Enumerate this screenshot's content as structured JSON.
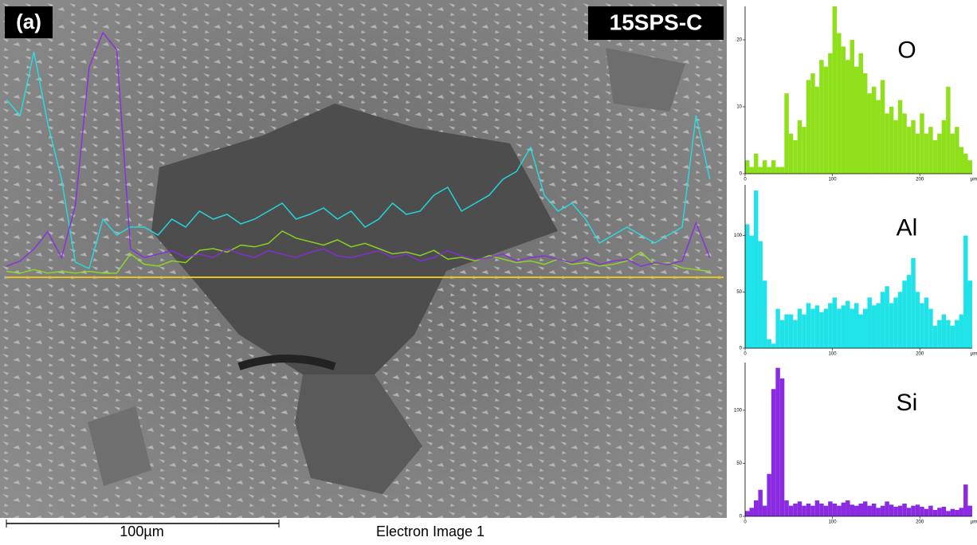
{
  "panel_label": "(a)",
  "sample_label": "15SPS-C",
  "scale_bar_label": "100µm",
  "image_caption": "Electron Image 1",
  "chart_data": [
    {
      "type": "bar",
      "title": "O",
      "color": "#8fe01a",
      "x_label": "µm",
      "x": [
        0,
        5,
        10,
        15,
        20,
        25,
        30,
        35,
        40,
        45,
        50,
        55,
        60,
        65,
        70,
        75,
        80,
        85,
        90,
        95,
        100,
        105,
        110,
        115,
        120,
        125,
        130,
        135,
        140,
        145,
        150,
        155,
        160,
        165,
        170,
        175,
        180,
        185,
        190,
        195,
        200,
        205,
        210,
        215,
        220,
        225,
        230,
        235,
        240,
        245,
        250,
        255
      ],
      "values": [
        2,
        1,
        3,
        1,
        2,
        1,
        2,
        1,
        1,
        12,
        6,
        5,
        8,
        7,
        14,
        15,
        13,
        17,
        16,
        18,
        25,
        21,
        19,
        17,
        20,
        16,
        18,
        15,
        12,
        13,
        11,
        14,
        9,
        10,
        8,
        11,
        9,
        7,
        8,
        6,
        9,
        6,
        7,
        5,
        6,
        8,
        13,
        6,
        7,
        4,
        3,
        2
      ],
      "xlim": [
        0,
        260
      ],
      "xticks": [
        0,
        100,
        200
      ],
      "ylim": [
        0,
        25
      ],
      "yticks": [
        0,
        10,
        20
      ]
    },
    {
      "type": "bar",
      "title": "Al",
      "color": "#1fe3e8",
      "x_label": "µm",
      "x": [
        0,
        5,
        10,
        15,
        20,
        25,
        30,
        35,
        40,
        45,
        50,
        55,
        60,
        65,
        70,
        75,
        80,
        85,
        90,
        95,
        100,
        105,
        110,
        115,
        120,
        125,
        130,
        135,
        140,
        145,
        150,
        155,
        160,
        165,
        170,
        175,
        180,
        185,
        190,
        195,
        200,
        205,
        210,
        215,
        220,
        225,
        230,
        235,
        240,
        245,
        250,
        255
      ],
      "values": [
        110,
        100,
        140,
        95,
        60,
        8,
        4,
        35,
        25,
        30,
        30,
        25,
        35,
        30,
        40,
        35,
        38,
        32,
        35,
        40,
        45,
        35,
        38,
        42,
        35,
        40,
        30,
        35,
        45,
        38,
        40,
        50,
        55,
        40,
        45,
        50,
        60,
        65,
        80,
        50,
        40,
        45,
        35,
        20,
        25,
        30,
        25,
        20,
        25,
        30,
        100,
        60
      ],
      "xlim": [
        0,
        260
      ],
      "xticks": [
        0,
        100,
        200
      ],
      "ylim": [
        0,
        145
      ],
      "yticks": [
        0,
        50,
        100
      ]
    },
    {
      "type": "bar",
      "title": "Si",
      "color": "#8a2be2",
      "x_label": "µm",
      "x": [
        0,
        5,
        10,
        15,
        20,
        25,
        30,
        35,
        40,
        45,
        50,
        55,
        60,
        65,
        70,
        75,
        80,
        85,
        90,
        95,
        100,
        105,
        110,
        115,
        120,
        125,
        130,
        135,
        140,
        145,
        150,
        155,
        160,
        165,
        170,
        175,
        180,
        185,
        190,
        195,
        200,
        205,
        210,
        215,
        220,
        225,
        230,
        235,
        240,
        245,
        250,
        255
      ],
      "values": [
        5,
        8,
        15,
        25,
        10,
        40,
        120,
        140,
        130,
        15,
        10,
        12,
        14,
        10,
        12,
        10,
        15,
        12,
        10,
        14,
        12,
        10,
        13,
        15,
        11,
        10,
        12,
        14,
        10,
        12,
        8,
        10,
        14,
        11,
        9,
        10,
        12,
        8,
        10,
        11,
        9,
        7,
        10,
        6,
        8,
        9,
        5,
        7,
        6,
        8,
        30,
        10
      ],
      "xlim": [
        0,
        260
      ],
      "xticks": [
        0,
        100,
        200
      ],
      "ylim": [
        0,
        145
      ],
      "yticks": [
        0,
        50,
        100
      ]
    }
  ]
}
